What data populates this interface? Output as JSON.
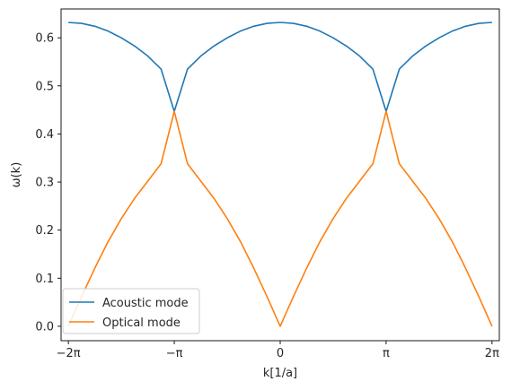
{
  "chart_data": {
    "type": "line",
    "xlabel": "k[1/a]",
    "ylabel": "ω(k)",
    "xlim": [
      -6.5,
      6.5
    ],
    "ylim": [
      -0.03,
      0.66
    ],
    "x_ticks": [
      {
        "value": -6.283185,
        "label": "−2π"
      },
      {
        "value": -3.141593,
        "label": "−π"
      },
      {
        "value": 0,
        "label": "0"
      },
      {
        "value": 3.141593,
        "label": "π"
      },
      {
        "value": 6.283185,
        "label": "2π"
      }
    ],
    "y_ticks": [
      {
        "value": 0.0,
        "label": "0.0"
      },
      {
        "value": 0.1,
        "label": "0.1"
      },
      {
        "value": 0.2,
        "label": "0.2"
      },
      {
        "value": 0.3,
        "label": "0.3"
      },
      {
        "value": 0.4,
        "label": "0.4"
      },
      {
        "value": 0.5,
        "label": "0.5"
      },
      {
        "value": 0.6,
        "label": "0.6"
      }
    ],
    "legend_position": "lower-left",
    "grid": false,
    "series": [
      {
        "name": "Acoustic mode",
        "color": "#1f77b4",
        "x": [
          -6.283,
          -5.89,
          -5.498,
          -5.105,
          -4.712,
          -4.32,
          -3.927,
          -3.534,
          -3.142,
          -2.749,
          -2.356,
          -1.963,
          -1.571,
          -1.178,
          -0.785,
          -0.393,
          0.0,
          0.393,
          0.785,
          1.178,
          1.571,
          1.963,
          2.356,
          2.749,
          3.142,
          3.534,
          3.927,
          4.32,
          4.712,
          5.105,
          5.498,
          5.89,
          6.283
        ],
        "y": [
          0.632,
          0.63,
          0.624,
          0.614,
          0.6,
          0.583,
          0.562,
          0.535,
          0.447,
          0.535,
          0.562,
          0.583,
          0.6,
          0.614,
          0.624,
          0.63,
          0.632,
          0.63,
          0.624,
          0.614,
          0.6,
          0.583,
          0.562,
          0.535,
          0.447,
          0.535,
          0.562,
          0.583,
          0.6,
          0.614,
          0.624,
          0.63,
          0.632
        ]
      },
      {
        "name": "Optical mode",
        "color": "#ff7f0e",
        "x": [
          -6.283,
          -5.89,
          -5.498,
          -5.105,
          -4.712,
          -4.32,
          -3.927,
          -3.534,
          -3.142,
          -2.749,
          -2.356,
          -1.963,
          -1.571,
          -1.178,
          -0.785,
          -0.393,
          0.0,
          0.393,
          0.785,
          1.178,
          1.571,
          1.963,
          2.356,
          2.749,
          3.142,
          3.534,
          3.927,
          4.32,
          4.712,
          5.105,
          5.498,
          5.89,
          6.283
        ],
        "y": [
          0.0,
          0.062,
          0.121,
          0.176,
          0.224,
          0.266,
          0.302,
          0.338,
          0.447,
          0.338,
          0.302,
          0.266,
          0.224,
          0.176,
          0.121,
          0.062,
          0.0,
          0.062,
          0.121,
          0.176,
          0.224,
          0.266,
          0.302,
          0.338,
          0.447,
          0.338,
          0.302,
          0.266,
          0.224,
          0.176,
          0.121,
          0.062,
          0.0
        ]
      }
    ]
  }
}
